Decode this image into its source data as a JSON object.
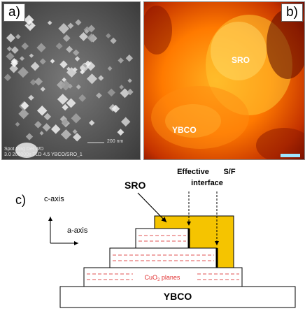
{
  "panel_a": {
    "label": "a)",
    "sem_info_line1": "Spot Mag   Det  WD",
    "sem_info_line2": "3.0  200000x TLD  4.5   YBCO/SRO_1",
    "scale_text": "200 nm"
  },
  "panel_b": {
    "label": "b)",
    "sro_label": "SRO",
    "ybco_label": "YBCO"
  },
  "panel_c": {
    "label": "c)",
    "sro_label": "SRO",
    "effective_label_1": "Effective",
    "effective_label_2": "interface",
    "sf_label_1": "S/F",
    "sf_label_2": "interface",
    "c_axis": "c-axis",
    "a_axis": "a-axis",
    "cuo2_text": "CuO",
    "cuo2_sub": "2",
    "cuo2_suffix": " planes",
    "ybco_label": "YBCO"
  },
  "colors": {
    "sro_fill": "#f5c400",
    "dashed_lines": "#e05050",
    "interface": "#000000"
  }
}
